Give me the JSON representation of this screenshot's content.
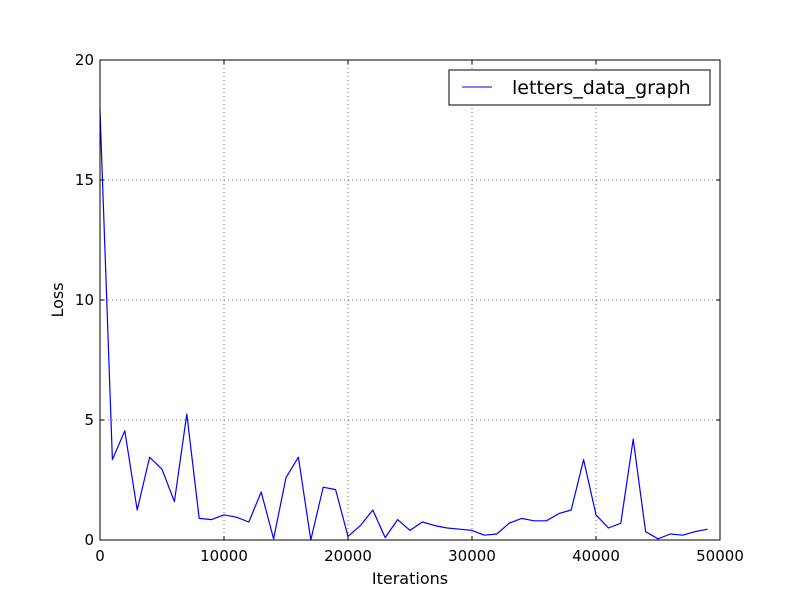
{
  "chart_data": {
    "type": "line",
    "title": "",
    "xlabel": "Iterations",
    "ylabel": "Loss",
    "xlim": [
      0,
      50000
    ],
    "ylim": [
      0,
      20
    ],
    "xticks": [
      0,
      10000,
      20000,
      30000,
      40000,
      50000
    ],
    "xtick_labels": [
      "0",
      "10000",
      "20000",
      "30000",
      "40000",
      "50000"
    ],
    "yticks": [
      0,
      5,
      10,
      15,
      20
    ],
    "ytick_labels": [
      "0",
      "5",
      "10",
      "15",
      "20"
    ],
    "grid": true,
    "legend_position": "top-right",
    "series": [
      {
        "name": "letters_data_graph",
        "color": "#0000ff",
        "x": [
          0,
          1000,
          2000,
          3000,
          4000,
          5000,
          6000,
          7000,
          8000,
          9000,
          10000,
          11000,
          12000,
          13000,
          14000,
          15000,
          16000,
          17000,
          18000,
          19000,
          20000,
          21000,
          22000,
          23000,
          24000,
          25000,
          26000,
          27000,
          28000,
          29000,
          30000,
          31000,
          32000,
          33000,
          34000,
          35000,
          36000,
          37000,
          38000,
          39000,
          40000,
          41000,
          42000,
          43000,
          44000,
          45000,
          46000,
          47000,
          48000,
          49000
        ],
        "y": [
          17.9,
          3.35,
          4.55,
          1.25,
          3.45,
          2.95,
          1.6,
          5.25,
          0.9,
          0.85,
          1.05,
          0.95,
          0.75,
          2.0,
          0.05,
          2.6,
          3.45,
          0.0,
          2.2,
          2.1,
          0.15,
          0.6,
          1.25,
          0.1,
          0.85,
          0.4,
          0.75,
          0.6,
          0.5,
          0.45,
          0.4,
          0.2,
          0.25,
          0.7,
          0.9,
          0.8,
          0.8,
          1.1,
          1.25,
          3.35,
          1.05,
          0.5,
          0.7,
          4.2,
          0.35,
          0.05,
          0.25,
          0.2,
          0.35,
          0.45
        ]
      }
    ]
  }
}
